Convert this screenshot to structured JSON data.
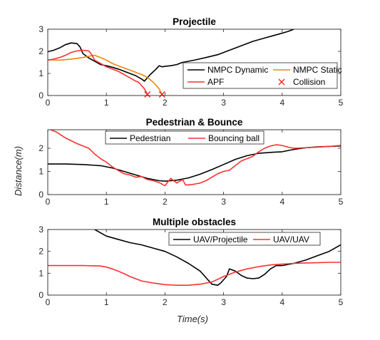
{
  "figure": {
    "ylabel": "Distance(m)",
    "xlabel": "Time(s)"
  },
  "chart_data": [
    {
      "type": "line",
      "title": "Projectile",
      "xlim": [
        0,
        5
      ],
      "ylim": [
        0,
        3
      ],
      "xticks": [
        "0",
        "1",
        "2",
        "3",
        "4",
        "5"
      ],
      "yticks": [
        "0",
        "1",
        "2",
        "3"
      ],
      "grid": false,
      "legend_position": "bottom-right",
      "series": [
        {
          "name": "NMPC Dynamic",
          "color": "#000000",
          "x": [
            0,
            0.1,
            0.2,
            0.3,
            0.4,
            0.5,
            0.55,
            0.6,
            0.7,
            0.8,
            0.9,
            1.0,
            1.1,
            1.2,
            1.3,
            1.4,
            1.5,
            1.6,
            1.65,
            1.75,
            1.85,
            1.9,
            1.95,
            2.0,
            2.1,
            2.2,
            2.3,
            2.5,
            2.7,
            2.9,
            3.1,
            3.3,
            3.5,
            3.7,
            3.9,
            4.1,
            4.2
          ],
          "y": [
            1.98,
            2.05,
            2.15,
            2.3,
            2.38,
            2.35,
            2.2,
            1.9,
            1.7,
            1.55,
            1.4,
            1.35,
            1.28,
            1.2,
            1.1,
            1.0,
            0.9,
            0.75,
            0.65,
            0.95,
            1.2,
            1.35,
            1.3,
            1.32,
            1.35,
            1.4,
            1.5,
            1.6,
            1.72,
            1.85,
            2.05,
            2.25,
            2.45,
            2.6,
            2.75,
            2.9,
            3.0
          ]
        },
        {
          "name": "NMPC Static",
          "color": "#e8890c",
          "x": [
            0,
            0.2,
            0.4,
            0.6,
            0.7,
            0.8,
            0.9,
            1.0,
            1.1,
            1.2,
            1.3,
            1.4,
            1.5,
            1.6,
            1.7,
            1.8,
            1.9,
            1.95
          ],
          "y": [
            1.62,
            1.6,
            1.65,
            1.72,
            1.78,
            1.82,
            1.72,
            1.6,
            1.45,
            1.35,
            1.25,
            1.15,
            1.05,
            0.95,
            0.82,
            0.6,
            0.3,
            0.05
          ]
        },
        {
          "name": "APF",
          "color": "#ff3030",
          "x": [
            0,
            0.1,
            0.2,
            0.3,
            0.4,
            0.5,
            0.6,
            0.7,
            0.75,
            0.8,
            0.9,
            1.0,
            1.1,
            1.2,
            1.3,
            1.4,
            1.5,
            1.55,
            1.6,
            1.65,
            1.7
          ],
          "y": [
            1.6,
            1.65,
            1.72,
            1.82,
            1.95,
            2.02,
            2.05,
            2.02,
            1.85,
            1.6,
            1.45,
            1.3,
            1.2,
            1.1,
            0.95,
            0.8,
            0.65,
            0.6,
            0.45,
            0.3,
            0.05
          ]
        }
      ],
      "markers": [
        {
          "name": "Collision",
          "color": "#ff2020",
          "x": [
            1.7,
            1.95
          ],
          "y": [
            0.05,
            0.05
          ]
        }
      ]
    },
    {
      "type": "line",
      "title": "Pedestrian & Bounce",
      "xlim": [
        0,
        5
      ],
      "ylim": [
        0,
        2.8
      ],
      "xticks": [
        "0",
        "1",
        "2",
        "3",
        "4",
        "5"
      ],
      "yticks": [
        "0",
        "1",
        "2"
      ],
      "ytick_values": [
        0,
        1,
        2
      ],
      "grid": false,
      "legend_position": "top",
      "series": [
        {
          "name": "Pedestrian",
          "color": "#000000",
          "x": [
            0,
            0.3,
            0.6,
            0.9,
            1.1,
            1.3,
            1.5,
            1.7,
            1.9,
            2.0,
            2.2,
            2.4,
            2.6,
            2.8,
            3.0,
            3.2,
            3.4,
            3.6,
            3.8,
            4.0,
            4.2,
            4.4,
            4.6,
            4.8,
            5.0
          ],
          "y": [
            1.32,
            1.32,
            1.3,
            1.25,
            1.15,
            1.0,
            0.85,
            0.7,
            0.6,
            0.58,
            0.62,
            0.72,
            0.88,
            1.08,
            1.3,
            1.52,
            1.68,
            1.78,
            1.82,
            1.85,
            1.95,
            2.02,
            2.06,
            2.08,
            2.1
          ]
        },
        {
          "name": "Bouncing ball",
          "color": "#ff3030",
          "x": [
            0,
            0.15,
            0.3,
            0.5,
            0.7,
            0.8,
            0.9,
            1.0,
            1.1,
            1.2,
            1.3,
            1.4,
            1.5,
            1.6,
            1.7,
            1.8,
            1.9,
            1.95,
            2.0,
            2.05,
            2.1,
            2.2,
            2.3,
            2.35,
            2.4,
            2.5,
            2.6,
            2.7,
            2.8,
            2.9,
            3.0,
            3.1,
            3.2,
            3.3,
            3.4,
            3.5,
            3.6,
            3.7,
            3.8,
            3.9,
            4.0,
            4.1,
            4.2,
            4.4,
            4.6,
            4.8,
            5.0
          ],
          "y": [
            2.85,
            2.7,
            2.45,
            2.2,
            2.0,
            1.75,
            1.55,
            1.4,
            1.2,
            1.05,
            0.9,
            0.85,
            0.75,
            0.78,
            0.65,
            0.6,
            0.52,
            0.45,
            0.38,
            0.55,
            0.7,
            0.5,
            0.65,
            0.42,
            0.42,
            0.45,
            0.5,
            0.6,
            0.75,
            0.9,
            1.0,
            1.05,
            1.25,
            1.45,
            1.55,
            1.65,
            1.85,
            2.0,
            2.1,
            2.15,
            2.12,
            2.05,
            2.0,
            2.02,
            2.05,
            2.08,
            2.12
          ]
        }
      ]
    },
    {
      "type": "line",
      "title": "Multiple obstacles",
      "xlim": [
        0,
        5
      ],
      "ylim": [
        0,
        3
      ],
      "xticks": [
        "0",
        "1",
        "2",
        "3",
        "4",
        "5"
      ],
      "yticks": [
        "0",
        "1",
        "2",
        "3"
      ],
      "grid": false,
      "legend_position": "top-right",
      "series": [
        {
          "name": "UAV/Projectile",
          "color": "#000000",
          "x": [
            0.8,
            1.0,
            1.2,
            1.4,
            1.6,
            1.8,
            2.0,
            2.2,
            2.4,
            2.6,
            2.7,
            2.8,
            2.9,
            2.95,
            3.05,
            3.1,
            3.2,
            3.3,
            3.4,
            3.5,
            3.6,
            3.7,
            3.8,
            3.9,
            4.0,
            4.2,
            4.4,
            4.6,
            4.8,
            5.0
          ],
          "y": [
            3.0,
            2.7,
            2.55,
            2.4,
            2.3,
            2.15,
            2.0,
            1.75,
            1.45,
            1.1,
            0.8,
            0.5,
            0.45,
            0.55,
            0.85,
            1.2,
            1.1,
            0.9,
            0.78,
            0.75,
            0.78,
            0.95,
            1.2,
            1.35,
            1.35,
            1.45,
            1.6,
            1.8,
            2.0,
            2.3
          ]
        },
        {
          "name": "UAV/UAV",
          "color": "#ff3030",
          "x": [
            0,
            0.3,
            0.6,
            0.9,
            1.0,
            1.1,
            1.2,
            1.3,
            1.4,
            1.5,
            1.6,
            1.8,
            2.0,
            2.2,
            2.4,
            2.6,
            2.8,
            2.9,
            3.0,
            3.1,
            3.2,
            3.4,
            3.6,
            3.8,
            4.0,
            4.2,
            4.4,
            4.6,
            4.8,
            5.0
          ],
          "y": [
            1.35,
            1.35,
            1.35,
            1.33,
            1.28,
            1.2,
            1.1,
            0.98,
            0.85,
            0.75,
            0.65,
            0.55,
            0.48,
            0.45,
            0.45,
            0.5,
            0.6,
            0.72,
            0.85,
            0.95,
            1.05,
            1.2,
            1.3,
            1.38,
            1.42,
            1.45,
            1.47,
            1.48,
            1.5,
            1.5
          ]
        }
      ]
    }
  ]
}
